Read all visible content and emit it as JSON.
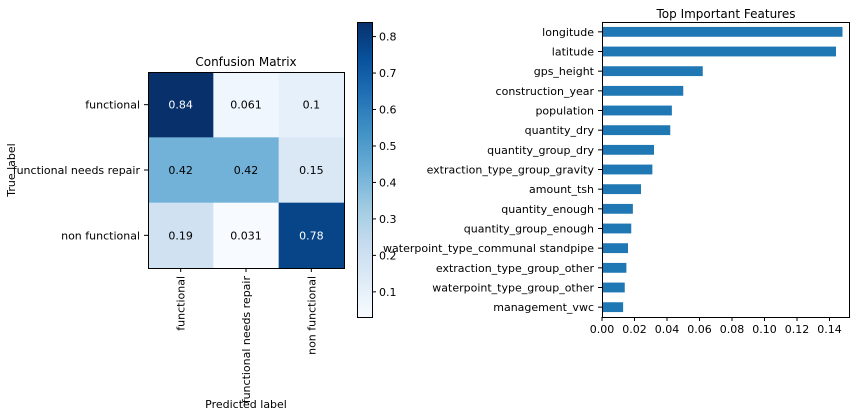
{
  "chart_data": [
    {
      "type": "heatmap",
      "title": "Confusion Matrix",
      "xlabel": "Predicted label",
      "ylabel": "True label",
      "x_categories": [
        "functional",
        "functional needs repair",
        "non functional"
      ],
      "y_categories": [
        "functional",
        "functional needs repair",
        "non functional"
      ],
      "values": [
        [
          0.84,
          0.061,
          0.1
        ],
        [
          0.42,
          0.42,
          0.15
        ],
        [
          0.19,
          0.031,
          0.78
        ]
      ],
      "value_labels": [
        [
          "0.84",
          "0.061",
          "0.1"
        ],
        [
          "0.42",
          "0.42",
          "0.15"
        ],
        [
          "0.19",
          "0.031",
          "0.78"
        ]
      ],
      "colormap": "Blues",
      "vmin": 0.031,
      "vmax": 0.84,
      "colorbar_ticks": [
        0.1,
        0.2,
        0.3,
        0.4,
        0.5,
        0.6,
        0.7,
        0.8
      ],
      "colorbar_tick_labels": [
        "0.1",
        "0.2",
        "0.3",
        "0.4",
        "0.5",
        "0.6",
        "0.7",
        "0.8"
      ],
      "grid": false
    },
    {
      "type": "bar",
      "orientation": "horizontal",
      "title": "Top Important Features",
      "xlabel": "",
      "ylabel": "",
      "categories": [
        "longitude",
        "latitude",
        "gps_height",
        "construction_year",
        "population",
        "quantity_dry",
        "quantity_group_dry",
        "extraction_type_group_gravity",
        "amount_tsh",
        "quantity_enough",
        "quantity_group_enough",
        "waterpoint_type_communal standpipe",
        "extraction_type_group_other",
        "waterpoint_type_group_other",
        "management_vwc"
      ],
      "values": [
        0.148,
        0.144,
        0.062,
        0.05,
        0.043,
        0.042,
        0.032,
        0.031,
        0.024,
        0.019,
        0.018,
        0.016,
        0.015,
        0.014,
        0.013
      ],
      "xlim": [
        0,
        0.152
      ],
      "xticks": [
        0,
        0.02,
        0.04,
        0.06,
        0.08,
        0.1,
        0.12,
        0.14
      ],
      "xtick_labels": [
        "0.00",
        "0.02",
        "0.04",
        "0.06",
        "0.08",
        "0.10",
        "0.12",
        "0.14"
      ],
      "bar_color": "#1f77b4",
      "grid": false
    }
  ]
}
